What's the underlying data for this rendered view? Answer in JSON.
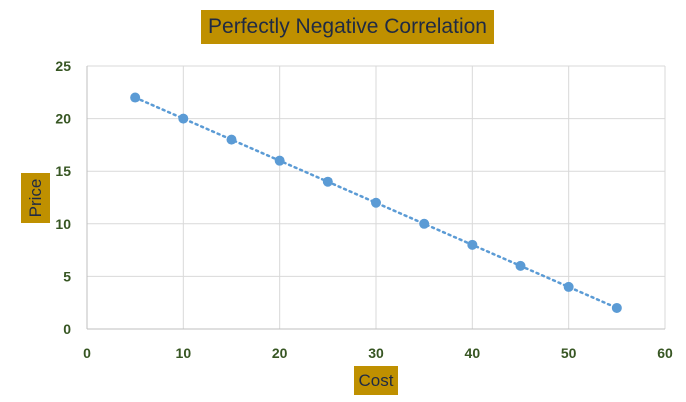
{
  "chart_data": {
    "type": "scatter",
    "title": "Perfectly Negative Correlation",
    "xlabel": "Cost",
    "ylabel": "Price",
    "xlim": [
      0,
      60
    ],
    "ylim": [
      0,
      25
    ],
    "x_ticks": [
      0,
      10,
      20,
      30,
      40,
      50,
      60
    ],
    "y_ticks": [
      0,
      5,
      10,
      15,
      20,
      25
    ],
    "grid": true,
    "trendline": "linear",
    "series": [
      {
        "name": "Price",
        "x": [
          5,
          10,
          15,
          20,
          25,
          30,
          35,
          40,
          45,
          50,
          55
        ],
        "y": [
          22,
          20,
          18,
          16,
          14,
          12,
          10,
          8,
          6,
          4,
          2
        ]
      }
    ]
  },
  "colors": {
    "marker": "#5b9bd5",
    "trendline": "#5b9bd5",
    "label_fill": "#bf9000",
    "label_text": "#1f2a44",
    "tick_text": "#375623",
    "grid": "#d9d9d9"
  }
}
